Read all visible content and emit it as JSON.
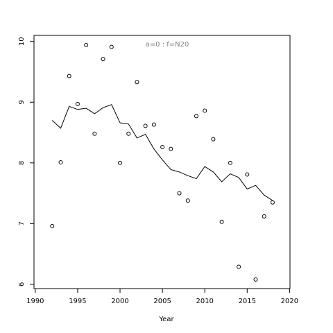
{
  "chart_data": {
    "type": "line",
    "annotation": "a=0  :  f=N20",
    "x_label": "Year",
    "x": [
      1992,
      1993,
      1994,
      1995,
      1996,
      1997,
      1998,
      1999,
      2000,
      2001,
      2002,
      2003,
      2004,
      2005,
      2006,
      2007,
      2008,
      2009,
      2010,
      2011,
      2012,
      2013,
      2014,
      2015,
      2016,
      2017,
      2018
    ],
    "series": [
      {
        "type": "scatter",
        "color": "#000000",
        "values": [
          6.96,
          8.01,
          9.43,
          8.97,
          9.94,
          8.48,
          9.71,
          9.91,
          8.0,
          8.48,
          9.33,
          8.61,
          8.63,
          8.26,
          8.23,
          7.5,
          7.38,
          8.77,
          8.86,
          8.39,
          7.03,
          8.0,
          6.29,
          7.81,
          6.08,
          7.12,
          7.35
        ]
      },
      {
        "type": "line",
        "color": "#000000",
        "values": [
          8.7,
          8.57,
          8.93,
          8.88,
          8.9,
          8.81,
          8.91,
          8.96,
          8.66,
          8.64,
          8.41,
          8.47,
          8.23,
          8.05,
          7.89,
          7.85,
          7.79,
          7.74,
          7.94,
          7.85,
          7.69,
          7.82,
          7.76,
          7.57,
          7.63,
          7.47,
          7.38
        ]
      }
    ],
    "xlim": [
      1989.85,
      2020.05
    ],
    "xticks": [
      1990,
      1995,
      2000,
      2005,
      2010,
      2015,
      2020
    ],
    "ylim": [
      5.93,
      10.1
    ],
    "yticks": [
      6,
      7,
      8,
      9,
      10
    ]
  }
}
